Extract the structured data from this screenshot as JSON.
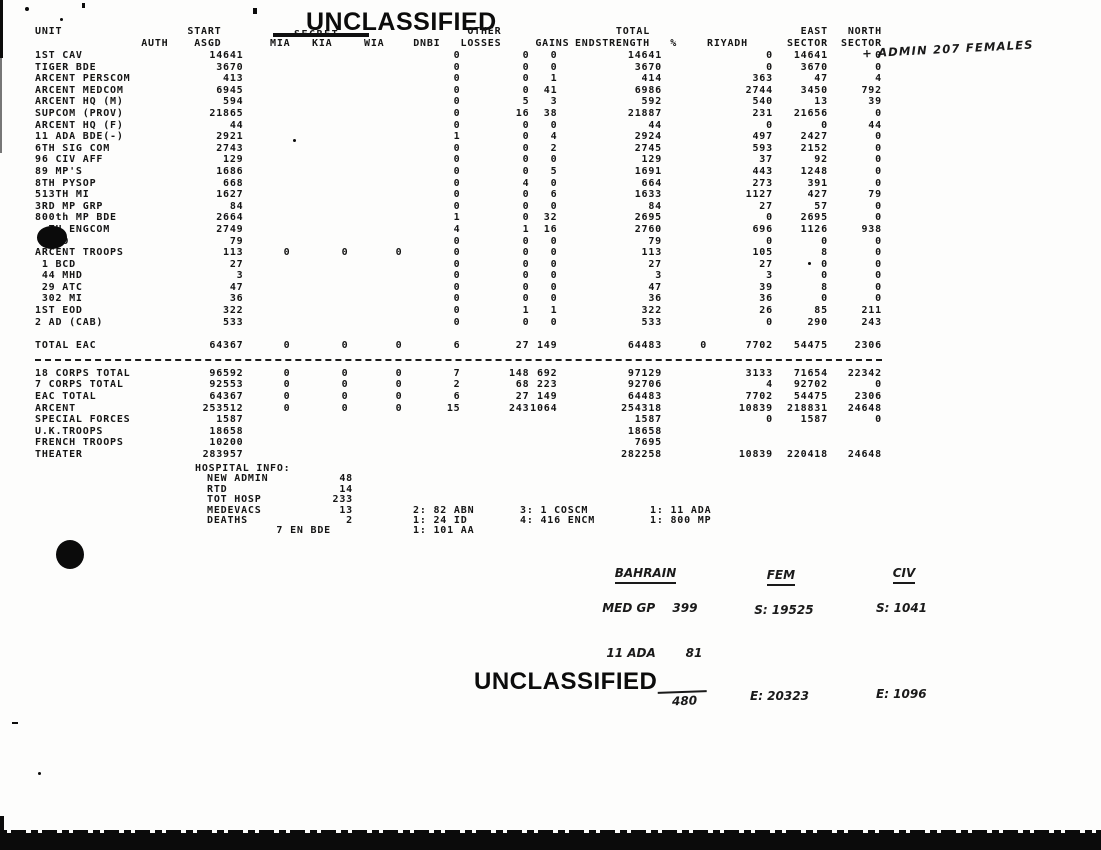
{
  "stamps": {
    "top": "UNCLASSIFIED",
    "bottom": "UNCLASSIFIED",
    "crossed_out": "SECRET"
  },
  "handwriting": {
    "top_right": "+ ADMIN 207 FEMALES",
    "bahrain": {
      "title": "BAHRAIN",
      "line1_label": "MED GP",
      "line1_value": "399",
      "line2_label": "11 ADA",
      "line2_value": "81",
      "total": "480"
    },
    "fem": {
      "title": "FEM",
      "start": "S: 19525",
      "end": "E: 20323"
    },
    "civ": {
      "title": "CIV",
      "start": "S: 1041",
      "end": "E: 1096"
    }
  },
  "table": {
    "headers": {
      "unit": "UNIT",
      "auth": "AUTH",
      "start1": "START",
      "start2": "ASGD",
      "mia": "MIA",
      "kia": "KIA",
      "wia": "WIA",
      "dnbi": "DNBI",
      "other1": "OTHER",
      "other2": "LOSSES",
      "gains": "GAINS",
      "end": "END",
      "total1": "TOTAL",
      "total2": "STRENGTH",
      "pct": "%",
      "riyadh": "RIYADH",
      "east1": "EAST",
      "east2": "SECTOR",
      "north1": "NORTH",
      "north2": "SECTOR"
    },
    "rows": [
      [
        "1ST CAV",
        "14641",
        "",
        "",
        "",
        "0",
        "0",
        "0",
        "14641",
        "",
        "0",
        "14641",
        "0"
      ],
      [
        "TIGER BDE",
        "3670",
        "",
        "",
        "",
        "0",
        "0",
        "0",
        "3670",
        "",
        "0",
        "3670",
        "0"
      ],
      [
        "ARCENT PERSCOM",
        "413",
        "",
        "",
        "",
        "0",
        "0",
        "1",
        "414",
        "",
        "363",
        "47",
        "4"
      ],
      [
        "ARCENT MEDCOM",
        "6945",
        "",
        "",
        "",
        "0",
        "0",
        "41",
        "6986",
        "",
        "2744",
        "3450",
        "792"
      ],
      [
        "ARCENT HQ (M)",
        "594",
        "",
        "",
        "",
        "0",
        "5",
        "3",
        "592",
        "",
        "540",
        "13",
        "39"
      ],
      [
        "SUPCOM (PROV)",
        "21865",
        "",
        "",
        "",
        "0",
        "16",
        "38",
        "21887",
        "",
        "231",
        "21656",
        "0"
      ],
      [
        "ARCENT HQ (F)",
        "44",
        "",
        "",
        "",
        "0",
        "0",
        "0",
        "44",
        "",
        "0",
        "0",
        "44"
      ],
      [
        "11 ADA BDE(-)",
        "2921",
        "",
        "",
        "",
        "1",
        "0",
        "4",
        "2924",
        "",
        "497",
        "2427",
        "0"
      ],
      [
        "6TH SIG COM",
        "2743",
        "",
        "",
        "",
        "0",
        "0",
        "2",
        "2745",
        "",
        "593",
        "2152",
        "0"
      ],
      [
        "96 CIV AFF",
        "129",
        "",
        "",
        "",
        "0",
        "0",
        "0",
        "129",
        "",
        "37",
        "92",
        "0"
      ],
      [
        "89 MP'S",
        "1686",
        "",
        "",
        "",
        "0",
        "0",
        "5",
        "1691",
        "",
        "443",
        "1248",
        "0"
      ],
      [
        "8TH PYSOP",
        "668",
        "",
        "",
        "",
        "0",
        "4",
        "0",
        "664",
        "",
        "273",
        "391",
        "0"
      ],
      [
        "513TH MI",
        "1627",
        "",
        "",
        "",
        "0",
        "0",
        "6",
        "1633",
        "",
        "1127",
        "427",
        "79"
      ],
      [
        "3RD MP GRP",
        "84",
        "",
        "",
        "",
        "0",
        "0",
        "0",
        "84",
        "",
        "27",
        "57",
        "0"
      ],
      [
        "800th MP BDE",
        "2664",
        "",
        "",
        "",
        "1",
        "0",
        "32",
        "2695",
        "",
        "0",
        "2695",
        "0"
      ],
      [
        "  TH ENGCOM",
        "2749",
        "",
        "",
        "",
        "4",
        "1",
        "16",
        "2760",
        "",
        "696",
        "1126",
        "938"
      ],
      [
        "   PO",
        "79",
        "",
        "",
        "",
        "0",
        "0",
        "0",
        "79",
        "",
        "0",
        "0",
        "0"
      ],
      [
        "ARCENT TROOPS",
        "113",
        "0",
        "0",
        "0",
        "0",
        "0",
        "0",
        "113",
        "",
        "105",
        "8",
        "0"
      ],
      [
        " 1 BCD",
        "27",
        "",
        "",
        "",
        "0",
        "0",
        "0",
        "27",
        "",
        "27",
        "0",
        "0"
      ],
      [
        " 44 MHD",
        "3",
        "",
        "",
        "",
        "0",
        "0",
        "0",
        "3",
        "",
        "3",
        "0",
        "0"
      ],
      [
        " 29 ATC",
        "47",
        "",
        "",
        "",
        "0",
        "0",
        "0",
        "47",
        "",
        "39",
        "8",
        "0"
      ],
      [
        " 302 MI",
        "36",
        "",
        "",
        "",
        "0",
        "0",
        "0",
        "36",
        "",
        "36",
        "0",
        "0"
      ],
      [
        "1ST EOD",
        "322",
        "",
        "",
        "",
        "0",
        "1",
        "1",
        "322",
        "",
        "26",
        "85",
        "211"
      ],
      [
        "2 AD (CAB)",
        "533",
        "",
        "",
        "",
        "0",
        "0",
        "0",
        "533",
        "",
        "0",
        "290",
        "243"
      ]
    ],
    "total_row": [
      "TOTAL EAC",
      "64367",
      "0",
      "0",
      "0",
      "6",
      "27",
      "149",
      "64483",
      "0",
      "7702",
      "54475",
      "2306"
    ],
    "summary_rows": [
      [
        "18 CORPS TOTAL",
        "96592",
        "0",
        "0",
        "0",
        "7",
        "148",
        "692",
        "97129",
        "",
        "3133",
        "71654",
        "22342"
      ],
      [
        "7 CORPS TOTAL",
        "92553",
        "0",
        "0",
        "0",
        "2",
        "68",
        "223",
        "92706",
        "",
        "4",
        "92702",
        "0"
      ],
      [
        "EAC TOTAL",
        "64367",
        "0",
        "0",
        "0",
        "6",
        "27",
        "149",
        "64483",
        "",
        "7702",
        "54475",
        "2306"
      ],
      [
        "ARCENT",
        "253512",
        "0",
        "0",
        "0",
        "15",
        "243",
        "1064",
        "254318",
        "",
        "10839",
        "218831",
        "24648"
      ],
      [
        "SPECIAL FORCES",
        "1587",
        "",
        "",
        "",
        "",
        "",
        "",
        "1587",
        "",
        "0",
        "1587",
        "0"
      ],
      [
        "U.K.TROOPS",
        "18658",
        "",
        "",
        "",
        "",
        "",
        "",
        "18658",
        "",
        "",
        "",
        ""
      ],
      [
        "FRENCH TROOPS",
        "10200",
        "",
        "",
        "",
        "",
        "",
        "",
        "7695",
        "",
        "",
        "",
        ""
      ],
      [
        "THEATER",
        "283957",
        "",
        "",
        "",
        "",
        "",
        "",
        "282258",
        "",
        "10839",
        "220418",
        "24648"
      ]
    ]
  },
  "hospital": {
    "title": "HOSPITAL INFO:",
    "rows": [
      {
        "label": "NEW ADMIN",
        "value": "48",
        "c3": "",
        "c4": "",
        "c5": ""
      },
      {
        "label": "RTD",
        "value": "14",
        "c3": "",
        "c4": "",
        "c5": ""
      },
      {
        "label": "TOT HOSP",
        "value": "233",
        "c3": "",
        "c4": "",
        "c5": ""
      },
      {
        "label": "MEDEVACS",
        "value": "13",
        "c3": "2: 82 ABN",
        "c4": "3: 1 COSCM",
        "c5": "1: 11 ADA"
      },
      {
        "label": "DEATHS",
        "value": "2",
        "c3": "1: 24 ID",
        "c4": "4: 416 ENCM",
        "c5": "1: 800 MP"
      },
      {
        "label": "",
        "value": "7 EN BDE",
        "c3": "1: 101 AA",
        "c4": "",
        "c5": ""
      }
    ]
  }
}
